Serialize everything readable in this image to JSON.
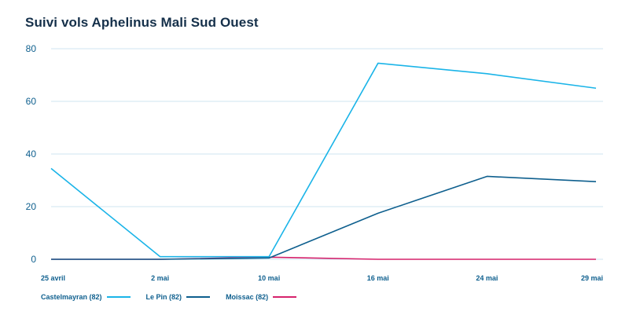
{
  "chart_data": {
    "type": "line",
    "title": "Suivi vols Aphelinus Mali Sud Ouest",
    "xlabel": "",
    "ylabel": "",
    "categories": [
      "25 avril",
      "2 mai",
      "10 mai",
      "16 mai",
      "24 mai",
      "29 mai"
    ],
    "ylim": [
      0,
      80
    ],
    "yticks": [
      0,
      20,
      40,
      60,
      80
    ],
    "grid": true,
    "legend_position": "bottom-left",
    "series": [
      {
        "name": "Castelmayran (82)",
        "color": "#1ab4e8",
        "values": [
          34.5,
          1,
          1,
          74.5,
          70.5,
          65
        ]
      },
      {
        "name": "Le Pin (82)",
        "color": "#0e5f8e",
        "values": [
          0,
          0,
          0.5,
          17.5,
          31.5,
          29.5
        ]
      },
      {
        "name": "Moissac (82)",
        "color": "#d6226c",
        "values": [
          0,
          0,
          0.8,
          0,
          0,
          0
        ]
      }
    ]
  }
}
